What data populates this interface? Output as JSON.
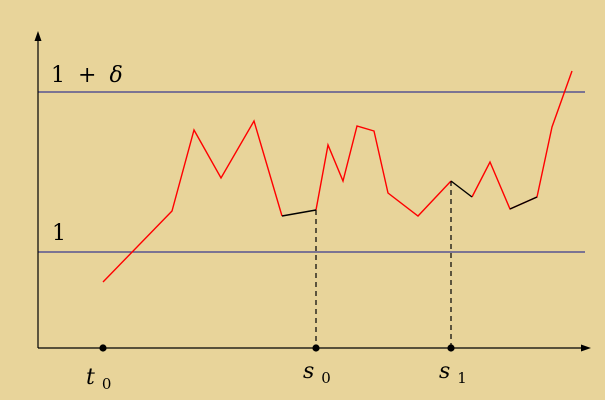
{
  "diagram": {
    "background": "#e8d49a",
    "axis_color": "#000000",
    "threshold_color": "#3a3a8f",
    "path_color": "#ff0000",
    "segment_color": "#000000",
    "upper_threshold": {
      "label_lhs": "1",
      "label_op": "+",
      "label_var": "δ"
    },
    "lower_threshold": {
      "label": "1"
    },
    "x_points": [
      {
        "base": "t",
        "subscript": "0"
      },
      {
        "base": "s",
        "subscript": "0"
      },
      {
        "base": "s",
        "subscript": "1"
      }
    ]
  }
}
